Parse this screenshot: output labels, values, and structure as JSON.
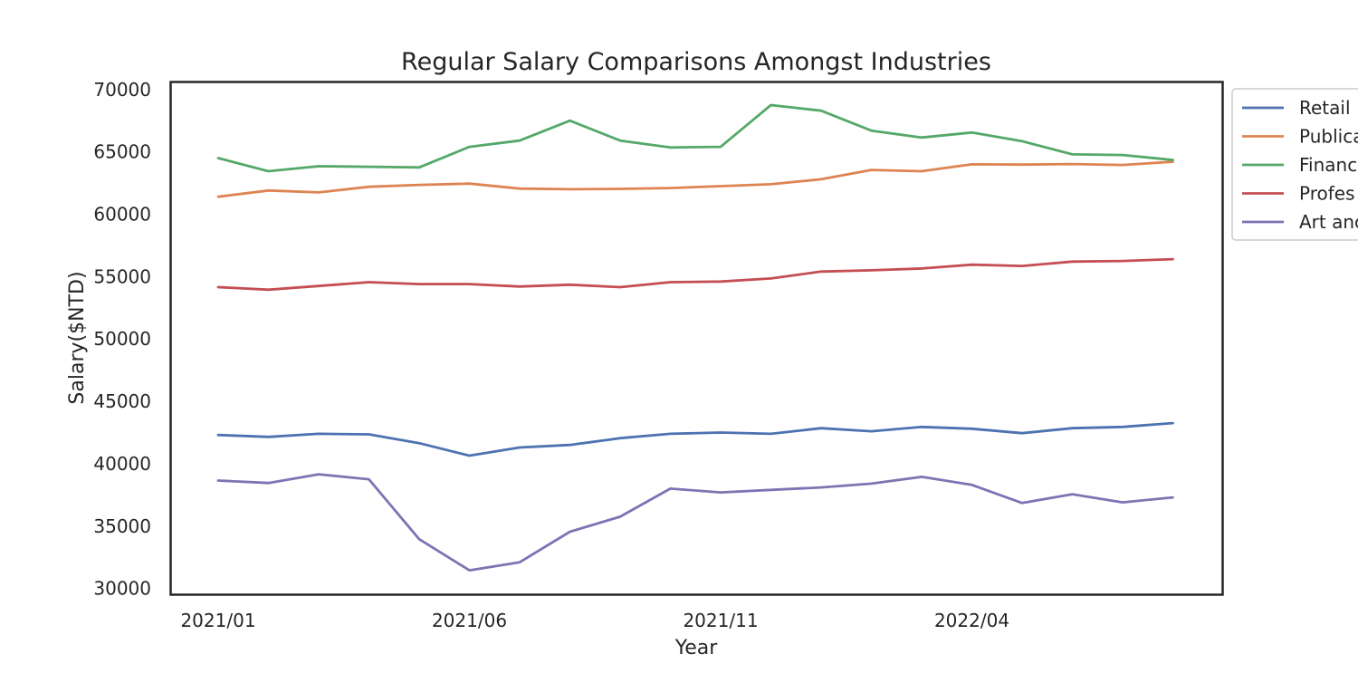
{
  "chart_data": {
    "type": "line",
    "title": "Regular Salary Comparisons Amongst Industries",
    "xlabel": "Year",
    "ylabel": "Salary($NTD)",
    "x_tick_labels": [
      "2021/01",
      "2021/06",
      "2021/11",
      "2022/04"
    ],
    "x_tick_months": [
      "2021/01",
      "2021/06",
      "2021/11",
      "2022/04"
    ],
    "x": [
      "2021/01",
      "2021/02",
      "2021/03",
      "2021/04",
      "2021/05",
      "2021/06",
      "2021/07",
      "2021/08",
      "2021/09",
      "2021/10",
      "2021/11",
      "2021/12",
      "2022/01",
      "2022/02",
      "2022/03",
      "2022/04",
      "2022/05",
      "2022/06",
      "2022/07",
      "2022/08",
      "2022/09"
    ],
    "ylim": [
      29500,
      70600
    ],
    "y_ticks": [
      30000,
      35000,
      40000,
      45000,
      50000,
      55000,
      60000,
      65000,
      70000
    ],
    "grid": false,
    "legend_position": "outside-top-right",
    "series": [
      {
        "name": "Retail",
        "color": "#4c72b0",
        "values": [
          42300,
          42150,
          42400,
          42350,
          41650,
          40650,
          41300,
          41500,
          42050,
          42400,
          42500,
          42400,
          42850,
          42600,
          42950,
          42800,
          42450,
          42850,
          42950,
          43250,
          null
        ]
      },
      {
        "name": "Publica",
        "color": "#dd8452",
        "values": [
          61400,
          61900,
          61750,
          62200,
          62350,
          62450,
          62050,
          62000,
          62030,
          62100,
          62250,
          62400,
          62800,
          63550,
          63450,
          64000,
          63980,
          64020,
          63950,
          64200,
          null
        ]
      },
      {
        "name": "Financ",
        "color": "#55a868",
        "values": [
          64500,
          63450,
          63850,
          63800,
          63750,
          65400,
          65900,
          67500,
          65900,
          65350,
          65400,
          68750,
          68300,
          66700,
          66150,
          66550,
          65850,
          64800,
          64750,
          64350,
          null
        ]
      },
      {
        "name": "Profes",
        "color": "#c44e52",
        "values": [
          54150,
          53950,
          54250,
          54550,
          54400,
          54400,
          54200,
          54350,
          54150,
          54550,
          54600,
          54850,
          55400,
          55500,
          55650,
          55950,
          55850,
          56200,
          56250,
          56400,
          null
        ]
      },
      {
        "name": "Art anc",
        "color": "#8172b3",
        "values": [
          38650,
          38450,
          39150,
          38750,
          33950,
          31450,
          32100,
          34550,
          35750,
          38000,
          37700,
          37900,
          38100,
          38400,
          38950,
          38300,
          36850,
          37550,
          36900,
          37300,
          null
        ]
      }
    ]
  }
}
